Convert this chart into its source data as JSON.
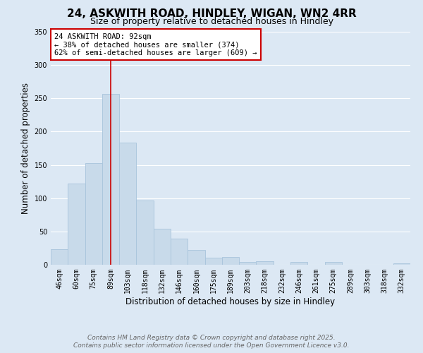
{
  "title": "24, ASKWITH ROAD, HINDLEY, WIGAN, WN2 4RR",
  "subtitle": "Size of property relative to detached houses in Hindley",
  "xlabel": "Distribution of detached houses by size in Hindley",
  "ylabel": "Number of detached properties",
  "bar_labels": [
    "46sqm",
    "60sqm",
    "75sqm",
    "89sqm",
    "103sqm",
    "118sqm",
    "132sqm",
    "146sqm",
    "160sqm",
    "175sqm",
    "189sqm",
    "203sqm",
    "218sqm",
    "232sqm",
    "246sqm",
    "261sqm",
    "275sqm",
    "289sqm",
    "303sqm",
    "318sqm",
    "332sqm"
  ],
  "bar_values": [
    23,
    122,
    153,
    257,
    183,
    96,
    54,
    39,
    22,
    11,
    12,
    4,
    5,
    0,
    4,
    0,
    4,
    0,
    0,
    0,
    2
  ],
  "bar_color": "#c8daea",
  "bar_edge_color": "#a8c4dc",
  "vline_x_index": 3,
  "vline_color": "#cc0000",
  "annotation_text": "24 ASKWITH ROAD: 92sqm\n← 38% of detached houses are smaller (374)\n62% of semi-detached houses are larger (609) →",
  "annotation_box_facecolor": "#ffffff",
  "annotation_box_edgecolor": "#cc0000",
  "ylim": [
    0,
    350
  ],
  "yticks": [
    0,
    50,
    100,
    150,
    200,
    250,
    300,
    350
  ],
  "bg_color": "#dce8f4",
  "plot_bg_color": "#dce8f4",
  "grid_color": "#ffffff",
  "footer_line1": "Contains HM Land Registry data © Crown copyright and database right 2025.",
  "footer_line2": "Contains public sector information licensed under the Open Government Licence v3.0.",
  "title_fontsize": 11,
  "subtitle_fontsize": 9,
  "axis_label_fontsize": 8.5,
  "tick_fontsize": 7,
  "annotation_fontsize": 7.5,
  "footer_fontsize": 6.5
}
